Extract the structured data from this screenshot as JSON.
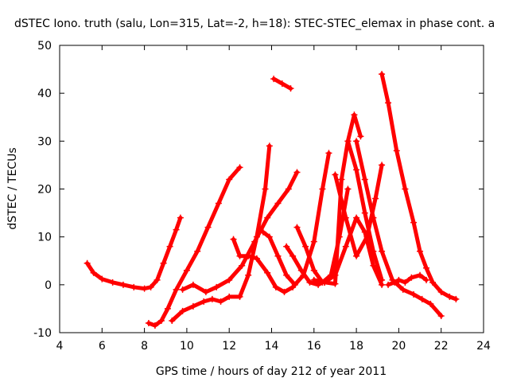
{
  "chart_data": {
    "type": "scatter",
    "title": "dSTEC Iono. truth (salu, Lon=315, Lat=-2, h=18): STEC-STEC_elemax in phase cont. a",
    "xlabel": "GPS time / hours of day 212 of year 2011",
    "ylabel": "dSTEC  / TECUs",
    "xlim": [
      4,
      24
    ],
    "ylim": [
      -10,
      50
    ],
    "xticks": [
      4,
      6,
      8,
      10,
      12,
      14,
      16,
      18,
      20,
      22,
      24
    ],
    "yticks": [
      -10,
      0,
      10,
      20,
      30,
      40,
      50
    ],
    "grid": false,
    "marker": "+",
    "series_color": "#ff0000",
    "series": [
      {
        "x": [
          5.3,
          5.6,
          6.0,
          6.5,
          7.0,
          7.5,
          8.0,
          8.3,
          8.6,
          8.9,
          9.2,
          9.5,
          9.7
        ],
        "y": [
          4.5,
          2.5,
          1.2,
          0.5,
          0.0,
          -0.5,
          -0.8,
          -0.5,
          1.0,
          4.5,
          8.0,
          11.5,
          14.0
        ]
      },
      {
        "x": [
          8.2,
          8.5,
          8.8,
          9.1,
          9.5,
          10.0,
          10.5,
          11.0,
          11.5,
          12.0,
          12.5
        ],
        "y": [
          -8.0,
          -8.5,
          -7.5,
          -5.0,
          -1.0,
          3.0,
          7.0,
          12.0,
          17.0,
          22.0,
          24.5
        ]
      },
      {
        "x": [
          9.3,
          9.8,
          10.3,
          10.8,
          11.2,
          11.6,
          12.0,
          12.5,
          12.9,
          13.3,
          13.7,
          13.9
        ],
        "y": [
          -7.5,
          -5.5,
          -4.5,
          -3.5,
          -3.0,
          -3.5,
          -2.5,
          -2.5,
          2.0,
          10.0,
          20.0,
          29.0
        ]
      },
      {
        "x": [
          9.8,
          10.3,
          10.9,
          11.4,
          12.0,
          12.6,
          13.2,
          13.8,
          14.3,
          14.8,
          15.2
        ],
        "y": [
          -1.0,
          0.0,
          -1.5,
          -0.5,
          1.0,
          4.0,
          9.0,
          14.0,
          17.0,
          20.0,
          23.5
        ]
      },
      {
        "x": [
          12.2,
          12.5,
          12.9,
          13.3,
          13.8,
          14.2,
          14.6,
          15.0
        ],
        "y": [
          9.5,
          6.0,
          6.0,
          5.5,
          2.5,
          -0.5,
          -1.5,
          -0.5
        ]
      },
      {
        "x": [
          13.6,
          13.9,
          14.3,
          14.7,
          15.1,
          15.5,
          16.0,
          16.4,
          16.7
        ],
        "y": [
          11.0,
          10.0,
          6.0,
          2.0,
          0.0,
          2.0,
          9.0,
          20.0,
          27.5
        ]
      },
      {
        "x": [
          14.1,
          14.5,
          14.9
        ],
        "y": [
          43.0,
          42.0,
          41.0
        ]
      },
      {
        "x": [
          14.7,
          15.0,
          15.4,
          15.8,
          16.2,
          16.6,
          17.0
        ],
        "y": [
          8.0,
          6.0,
          3.0,
          0.5,
          0.0,
          1.0,
          3.0
        ]
      },
      {
        "x": [
          15.2,
          15.6,
          16.0,
          16.4,
          16.8,
          17.2,
          17.6
        ],
        "y": [
          12.0,
          8.0,
          3.0,
          0.5,
          2.0,
          10.0,
          20.0
        ]
      },
      {
        "x": [
          16.0,
          16.5,
          17.0,
          17.5,
          18.0,
          18.4,
          18.8,
          19.2
        ],
        "y": [
          1.0,
          0.5,
          2.0,
          8.0,
          14.0,
          11.0,
          4.0,
          0.0
        ]
      },
      {
        "x": [
          16.5,
          17.0,
          17.3,
          17.6,
          17.9,
          18.2
        ],
        "y": [
          0.5,
          0.2,
          22.0,
          30.0,
          35.5,
          31.0
        ]
      },
      {
        "x": [
          17.0,
          17.5,
          18.0,
          18.5,
          18.9,
          19.2
        ],
        "y": [
          23.0,
          14.0,
          6.0,
          10.0,
          18.0,
          25.0
        ]
      },
      {
        "x": [
          17.6,
          18.0,
          18.4,
          18.8,
          19.2
        ],
        "y": [
          30.0,
          24.0,
          15.0,
          7.0,
          1.0
        ]
      },
      {
        "x": [
          18.0,
          18.4,
          18.8,
          19.2,
          19.7,
          20.2,
          20.7,
          21.1,
          21.5,
          22.0
        ],
        "y": [
          30.0,
          22.0,
          14.0,
          7.0,
          1.0,
          -1.0,
          -2.0,
          -3.0,
          -4.0,
          -6.5
        ]
      },
      {
        "x": [
          19.2,
          19.5,
          19.9,
          20.3,
          20.7,
          21.0,
          21.3,
          21.6,
          22.0,
          22.4,
          22.7
        ],
        "y": [
          44.0,
          38.0,
          28.0,
          20.0,
          13.0,
          7.0,
          3.5,
          0.5,
          -1.5,
          -2.5,
          -3.0
        ]
      },
      {
        "x": [
          19.5,
          19.8,
          20.0,
          20.3,
          20.6,
          21.0,
          21.3
        ],
        "y": [
          0.0,
          0.5,
          1.0,
          0.5,
          1.5,
          2.0,
          1.0
        ]
      }
    ]
  }
}
